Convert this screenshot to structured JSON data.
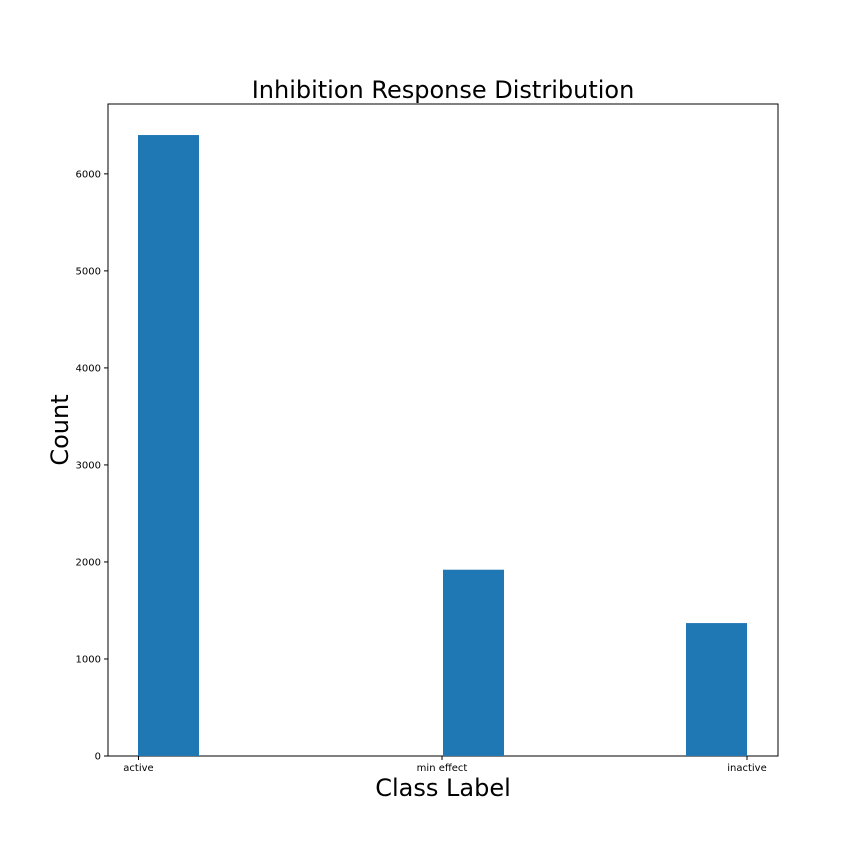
{
  "chart_data": {
    "type": "bar",
    "title": "Inhibition Response Distribution",
    "xlabel": "Class Label",
    "ylabel": "Count",
    "categories": [
      "active",
      "min effect",
      "inactive"
    ],
    "values": [
      6400,
      1920,
      1370
    ],
    "ylim": [
      0,
      6720
    ],
    "yticks": [
      0,
      1000,
      2000,
      3000,
      4000,
      5000,
      6000
    ],
    "bar_color": "#1f77b4",
    "grid": false,
    "legend": "none"
  }
}
